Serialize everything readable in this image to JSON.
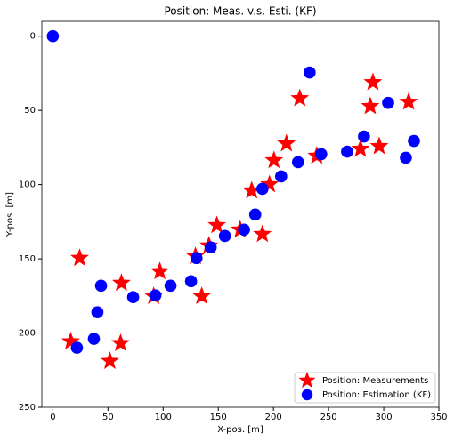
{
  "chart_data": {
    "type": "scatter",
    "title": "Position: Meas. v.s. Esti. (KF)",
    "x_label": "X-pos. [m]",
    "y_label": "Y-pos. [m]",
    "xlim": [
      -10,
      350
    ],
    "ylim": [
      250,
      -10
    ],
    "y_inverted": true,
    "xticks": [
      0,
      50,
      100,
      150,
      200,
      250,
      300,
      350
    ],
    "yticks": [
      0,
      50,
      100,
      150,
      200,
      250
    ],
    "legend_loc": "lower right",
    "series": [
      {
        "name": "Position: Measurements",
        "color": "#ff0000",
        "marker": "star",
        "x": [
          24.3,
          16.2,
          51.7,
          61.4,
          62.2,
          91.4,
          97.0,
          129.3,
          135.0,
          141.5,
          148.7,
          169.8,
          180.3,
          190.0,
          196.4,
          200.5,
          211.8,
          223.9,
          239.3,
          278.9,
          287.8,
          290.2,
          295.9,
          322.6
        ],
        "y": [
          149.5,
          205.7,
          218.9,
          206.9,
          166.3,
          175.2,
          158.5,
          148.3,
          175.2,
          141.1,
          127.4,
          130.4,
          104.1,
          133.4,
          99.9,
          83.7,
          72.4,
          41.9,
          80.7,
          76.0,
          47.2,
          31.1,
          74.2,
          44.3
        ]
      },
      {
        "name": "Position: Estimation (KF)",
        "color": "#0000ff",
        "marker": "circle",
        "x": [
          0,
          21.8,
          37.2,
          40.4,
          43.7,
          72.8,
          93.0,
          106.7,
          125.3,
          130.2,
          143.1,
          156.0,
          173.3,
          183.5,
          190.0,
          207.0,
          222.3,
          232.8,
          243.3,
          266.8,
          282.1,
          304.0,
          320.1,
          327.4
        ],
        "y": [
          0,
          209.9,
          203.9,
          186.0,
          168.1,
          175.8,
          174.6,
          168.1,
          165.1,
          149.5,
          142.3,
          134.6,
          130.4,
          120.2,
          102.9,
          94.5,
          84.9,
          24.5,
          79.5,
          77.8,
          67.6,
          44.9,
          81.9,
          70.6
        ]
      }
    ]
  }
}
